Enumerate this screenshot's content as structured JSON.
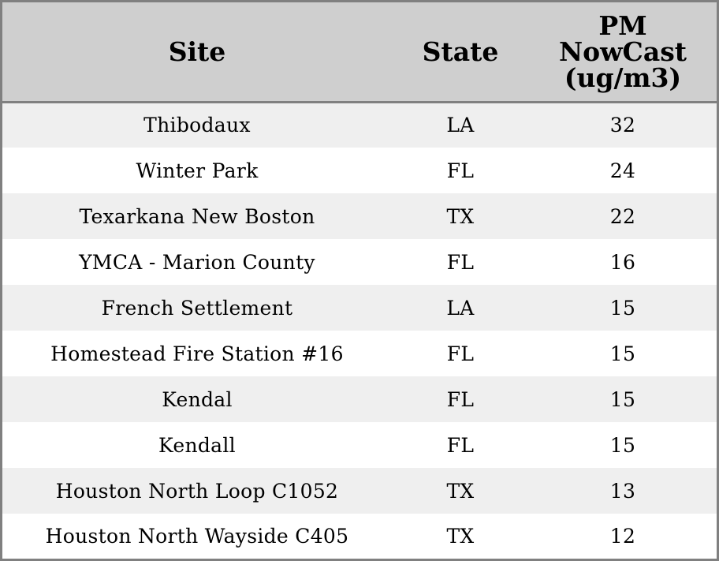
{
  "table": {
    "headers": {
      "site": "Site",
      "state": "State",
      "pm_lines": [
        "PM",
        "NowCast",
        "(ug/m3)"
      ]
    },
    "rows": [
      {
        "site": "Thibodaux",
        "state": "LA",
        "pm": "32"
      },
      {
        "site": "Winter Park",
        "state": "FL",
        "pm": "24"
      },
      {
        "site": "Texarkana New Boston",
        "state": "TX",
        "pm": "22"
      },
      {
        "site": "YMCA - Marion County",
        "state": "FL",
        "pm": "16"
      },
      {
        "site": "French Settlement",
        "state": "LA",
        "pm": "15"
      },
      {
        "site": "Homestead Fire Station #16",
        "state": "FL",
        "pm": "15"
      },
      {
        "site": "Kendal",
        "state": "FL",
        "pm": "15"
      },
      {
        "site": "Kendall",
        "state": "FL",
        "pm": "15"
      },
      {
        "site": "Houston North Loop C1052",
        "state": "TX",
        "pm": "13"
      },
      {
        "site": "Houston North Wayside C405",
        "state": "TX",
        "pm": "12"
      }
    ]
  },
  "colors": {
    "header_bg": "#cfcfcf",
    "row_alt_bg": "#efefef",
    "row_bg": "#ffffff",
    "border": "#808080"
  }
}
